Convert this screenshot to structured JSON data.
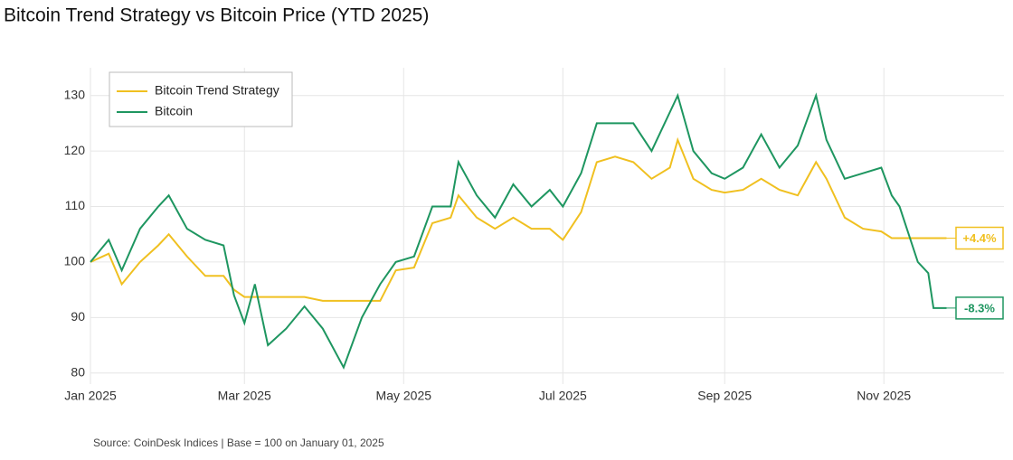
{
  "chart_data": {
    "type": "line",
    "title": "Bitcoin Trend Strategy vs Bitcoin Price (YTD 2025)",
    "source": "Source: CoinDesk Indices | Base = 100 on January 01, 2025",
    "x": [
      "2025-01-01",
      "2025-01-08",
      "2025-01-13",
      "2025-01-20",
      "2025-01-27",
      "2025-01-31",
      "2025-02-07",
      "2025-02-14",
      "2025-02-21",
      "2025-02-25",
      "2025-03-01",
      "2025-03-05",
      "2025-03-10",
      "2025-03-17",
      "2025-03-24",
      "2025-03-31",
      "2025-04-08",
      "2025-04-15",
      "2025-04-22",
      "2025-04-28",
      "2025-05-05",
      "2025-05-12",
      "2025-05-19",
      "2025-05-22",
      "2025-05-29",
      "2025-06-05",
      "2025-06-12",
      "2025-06-19",
      "2025-06-26",
      "2025-07-01",
      "2025-07-08",
      "2025-07-14",
      "2025-07-21",
      "2025-07-28",
      "2025-08-04",
      "2025-08-11",
      "2025-08-14",
      "2025-08-20",
      "2025-08-27",
      "2025-09-01",
      "2025-09-08",
      "2025-09-15",
      "2025-09-22",
      "2025-09-29",
      "2025-10-06",
      "2025-10-10",
      "2025-10-17",
      "2025-10-24",
      "2025-10-31",
      "2025-11-04",
      "2025-11-07",
      "2025-11-14",
      "2025-11-18",
      "2025-11-20",
      "2025-11-25"
    ],
    "series": [
      {
        "name": "Bitcoin Trend Strategy",
        "color": "#f0c020",
        "end_label": "+4.4%",
        "values": [
          100,
          101.5,
          96,
          100,
          103,
          105,
          101,
          97.5,
          97.5,
          95,
          93.7,
          93.7,
          93.7,
          93.7,
          93.7,
          93,
          93,
          93,
          93,
          98.5,
          99,
          107,
          108,
          112,
          108,
          106,
          108,
          106,
          106,
          104,
          109,
          118,
          119,
          118,
          115,
          117,
          122,
          115,
          113,
          112.5,
          113,
          115,
          113,
          112,
          118,
          115,
          108,
          106,
          105.5,
          104.3,
          104.3,
          104.3,
          104.3,
          104.3,
          104.3
        ]
      },
      {
        "name": "Bitcoin",
        "color": "#1e9660",
        "end_label": "-8.3%",
        "values": [
          100,
          104,
          98.5,
          106,
          110,
          112,
          106,
          104,
          103,
          94,
          89,
          96,
          85,
          88,
          92,
          88,
          81,
          90,
          96,
          100,
          101,
          110,
          110,
          118,
          112,
          108,
          114,
          110,
          113,
          110,
          116,
          125,
          125,
          125,
          120,
          127,
          130,
          120,
          116,
          115,
          117,
          123,
          117,
          121,
          130,
          122,
          115,
          116,
          117,
          112,
          110,
          100,
          98,
          91.7,
          91.7
        ]
      }
    ],
    "xlim": [
      "2025-01-01",
      "2025-12-17"
    ],
    "xticks": [
      {
        "value": "2025-01-01",
        "label": "Jan 2025"
      },
      {
        "value": "2025-03-01",
        "label": "Mar 2025"
      },
      {
        "value": "2025-05-01",
        "label": "May 2025"
      },
      {
        "value": "2025-07-01",
        "label": "Jul 2025"
      },
      {
        "value": "2025-09-01",
        "label": "Sep 2025"
      },
      {
        "value": "2025-11-01",
        "label": "Nov 2025"
      }
    ],
    "ylim": [
      78,
      135
    ],
    "yticks": [
      80,
      90,
      100,
      110,
      120,
      130
    ],
    "grid": true,
    "legend": "top-left"
  }
}
